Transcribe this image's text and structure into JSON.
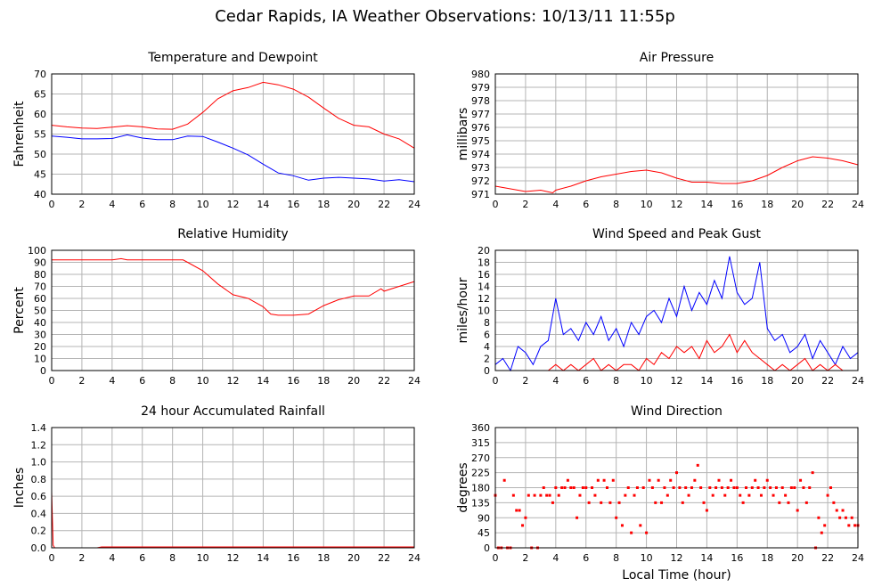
{
  "page": {
    "title": "Cedar Rapids, IA Weather Observations: 10/13/11 11:55p"
  },
  "chart_data": [
    {
      "type": "line",
      "title": "Temperature and Dewpoint",
      "xlabel": "",
      "ylabel": "Fahrenheit",
      "xlim": [
        0,
        24
      ],
      "ylim": [
        40,
        70
      ],
      "xticks": [
        "0",
        "2",
        "4",
        "6",
        "8",
        "10",
        "12",
        "14",
        "16",
        "18",
        "20",
        "22",
        "24"
      ],
      "yticks": [
        "40",
        "45",
        "50",
        "55",
        "60",
        "65",
        "70"
      ],
      "grid": true,
      "series": [
        {
          "color": "#ff0000",
          "x": [
            0,
            1,
            2,
            3,
            4,
            5,
            6,
            7,
            8,
            9,
            10,
            11,
            12,
            13,
            14,
            15,
            16,
            17,
            18,
            19,
            20,
            21,
            22,
            23,
            24
          ],
          "y": [
            57.2,
            56.8,
            56.5,
            56.4,
            56.7,
            57.1,
            56.8,
            56.3,
            56.2,
            57.5,
            60.4,
            63.8,
            65.8,
            66.6,
            67.9,
            67.3,
            66.2,
            64.2,
            61.5,
            58.9,
            57.2,
            56.8,
            55.0,
            53.8,
            51.5
          ]
        },
        {
          "color": "#0000ff",
          "x": [
            0,
            1,
            2,
            3,
            4,
            5,
            6,
            7,
            8,
            9,
            10,
            11,
            12,
            13,
            14,
            15,
            16,
            17,
            18,
            19,
            20,
            21,
            22,
            23,
            24
          ],
          "y": [
            54.5,
            54.2,
            53.8,
            53.8,
            53.9,
            54.8,
            54.0,
            53.6,
            53.6,
            54.5,
            54.4,
            53.0,
            51.5,
            49.8,
            47.5,
            45.3,
            44.6,
            43.5,
            44.0,
            44.2,
            44.0,
            43.8,
            43.3,
            43.6,
            43.1
          ]
        }
      ]
    },
    {
      "type": "line",
      "title": "Air Pressure",
      "xlabel": "",
      "ylabel": "millibars",
      "xlim": [
        0,
        24
      ],
      "ylim": [
        971,
        980
      ],
      "xticks": [
        "0",
        "2",
        "4",
        "6",
        "8",
        "10",
        "12",
        "14",
        "16",
        "18",
        "20",
        "22",
        "24"
      ],
      "yticks": [
        "971",
        "972",
        "973",
        "974",
        "975",
        "976",
        "977",
        "978",
        "979",
        "980"
      ],
      "grid": true,
      "series": [
        {
          "color": "#ff0000",
          "x": [
            0,
            1,
            2,
            3,
            3.8,
            4,
            5,
            6,
            7,
            8,
            9,
            10,
            11,
            12,
            13,
            14,
            15,
            16,
            17,
            18,
            19,
            20,
            21,
            22,
            23,
            24
          ],
          "y": [
            971.6,
            971.4,
            971.2,
            971.3,
            971.1,
            971.3,
            971.6,
            972.0,
            972.3,
            972.5,
            972.7,
            972.8,
            972.6,
            972.2,
            971.9,
            971.9,
            971.8,
            971.8,
            972.0,
            972.4,
            973.0,
            973.5,
            973.8,
            973.7,
            973.5,
            973.2
          ]
        }
      ]
    },
    {
      "type": "line",
      "title": "Relative Humidity",
      "xlabel": "",
      "ylabel": "Percent",
      "xlim": [
        0,
        24
      ],
      "ylim": [
        0,
        100
      ],
      "xticks": [
        "0",
        "2",
        "4",
        "6",
        "8",
        "10",
        "12",
        "14",
        "16",
        "18",
        "20",
        "22",
        "24"
      ],
      "yticks": [
        "0",
        "10",
        "20",
        "30",
        "40",
        "50",
        "60",
        "70",
        "80",
        "90",
        "100"
      ],
      "grid": true,
      "series": [
        {
          "color": "#ff0000",
          "x": [
            0,
            1,
            2,
            3,
            4,
            4.6,
            5,
            6,
            7,
            8,
            8.7,
            9,
            10,
            11,
            12,
            13,
            14,
            14.5,
            15,
            16,
            17,
            18,
            19,
            20,
            21,
            21.8,
            22,
            23,
            24
          ],
          "y": [
            92,
            92,
            92,
            92,
            92,
            93,
            92,
            92,
            92,
            92,
            92,
            90,
            83,
            72,
            63,
            60,
            53,
            47,
            46,
            46,
            47,
            54,
            59,
            62,
            62,
            68,
            66,
            70,
            74
          ]
        }
      ]
    },
    {
      "type": "line",
      "title": "Wind Speed and Peak Gust",
      "xlabel": "",
      "ylabel": "miles/hour",
      "xlim": [
        0,
        24
      ],
      "ylim": [
        0,
        20
      ],
      "xticks": [
        "0",
        "2",
        "4",
        "6",
        "8",
        "10",
        "12",
        "14",
        "16",
        "18",
        "20",
        "22",
        "24"
      ],
      "yticks": [
        "0",
        "2",
        "4",
        "6",
        "8",
        "10",
        "12",
        "14",
        "16",
        "18",
        "20"
      ],
      "grid": true,
      "series": [
        {
          "color": "#0000ff",
          "x": [
            0,
            0.5,
            1,
            1.5,
            2,
            2.5,
            3,
            3.5,
            4,
            4.5,
            5,
            5.5,
            6,
            6.5,
            7,
            7.5,
            8,
            8.5,
            9,
            9.5,
            10,
            10.5,
            11,
            11.5,
            12,
            12.5,
            13,
            13.5,
            14,
            14.5,
            15,
            15.5,
            16,
            16.5,
            17,
            17.5,
            18,
            18.5,
            19,
            19.5,
            20,
            20.5,
            21,
            21.5,
            22,
            22.5,
            23,
            23.5,
            24
          ],
          "y": [
            1,
            2,
            0,
            4,
            3,
            1,
            4,
            5,
            12,
            6,
            7,
            5,
            8,
            6,
            9,
            5,
            7,
            4,
            8,
            6,
            9,
            10,
            8,
            12,
            9,
            14,
            10,
            13,
            11,
            15,
            12,
            19,
            13,
            11,
            12,
            18,
            7,
            5,
            6,
            3,
            4,
            6,
            2,
            5,
            3,
            1,
            4,
            2,
            3
          ]
        },
        {
          "color": "#ff0000",
          "x": [
            0,
            0.5,
            1,
            1.5,
            2,
            2.5,
            3,
            3.5,
            4,
            4.5,
            5,
            5.5,
            6,
            6.5,
            7,
            7.5,
            8,
            8.5,
            9,
            9.5,
            10,
            10.5,
            11,
            11.5,
            12,
            12.5,
            13,
            13.5,
            14,
            14.5,
            15,
            15.5,
            16,
            16.5,
            17,
            17.5,
            18,
            18.5,
            19,
            19.5,
            20,
            20.5,
            21,
            21.5,
            22,
            22.5,
            23,
            23.5,
            24
          ],
          "y": [
            0,
            0,
            0,
            0,
            0,
            0,
            0,
            0,
            1,
            0,
            1,
            0,
            1,
            2,
            0,
            1,
            0,
            1,
            1,
            0,
            2,
            1,
            3,
            2,
            4,
            3,
            4,
            2,
            5,
            3,
            4,
            6,
            3,
            5,
            3,
            2,
            1,
            0,
            1,
            0,
            1,
            2,
            0,
            1,
            0,
            1,
            0,
            0,
            0
          ]
        }
      ]
    },
    {
      "type": "line",
      "title": "24 hour Accumulated Rainfall",
      "xlabel": "",
      "ylabel": "Inches",
      "xlim": [
        0,
        24
      ],
      "ylim": [
        0,
        1.4
      ],
      "xticks": [
        "0",
        "2",
        "4",
        "6",
        "8",
        "10",
        "12",
        "14",
        "16",
        "18",
        "20",
        "22",
        "24"
      ],
      "yticks": [
        "0.0",
        "0.2",
        "0.4",
        "0.6",
        "0.8",
        "1.0",
        "1.2",
        "1.4"
      ],
      "grid": true,
      "series": [
        {
          "color": "#ff0000",
          "x": [
            0,
            0.05,
            0.1,
            0.2,
            3,
            3.3,
            24
          ],
          "y": [
            0.65,
            0.35,
            0.03,
            0.0,
            0.0,
            0.01,
            0.01
          ]
        }
      ]
    },
    {
      "type": "scatter",
      "title": "Wind Direction",
      "xlabel": "Local Time (hour)",
      "ylabel": "degrees",
      "xlim": [
        0,
        24
      ],
      "ylim": [
        0,
        360
      ],
      "xticks": [
        "0",
        "2",
        "4",
        "6",
        "8",
        "10",
        "12",
        "14",
        "16",
        "18",
        "20",
        "22",
        "24"
      ],
      "yticks": [
        "0",
        "45",
        "90",
        "135",
        "180",
        "225",
        "270",
        "315",
        "360"
      ],
      "grid": true,
      "series": [
        {
          "color": "#ff0000",
          "x": [
            0,
            0.2,
            0.4,
            0.6,
            0.8,
            1.0,
            1.2,
            1.4,
            1.6,
            1.8,
            2.0,
            2.2,
            2.4,
            2.6,
            2.8,
            3.0,
            3.2,
            3.4,
            3.6,
            3.8,
            4.0,
            4.2,
            4.4,
            4.6,
            4.8,
            5.0,
            5.2,
            5.4,
            5.6,
            5.8,
            6.0,
            6.2,
            6.4,
            6.6,
            6.8,
            7.0,
            7.2,
            7.4,
            7.6,
            7.8,
            8.0,
            8.2,
            8.4,
            8.6,
            8.8,
            9.0,
            9.2,
            9.4,
            9.6,
            9.8,
            10.0,
            10.2,
            10.4,
            10.6,
            10.8,
            11.0,
            11.2,
            11.4,
            11.6,
            11.8,
            12.0,
            12.2,
            12.4,
            12.6,
            12.8,
            13.0,
            13.2,
            13.4,
            13.6,
            13.8,
            14.0,
            14.2,
            14.4,
            14.6,
            14.8,
            15.0,
            15.2,
            15.4,
            15.6,
            15.8,
            16.0,
            16.2,
            16.4,
            16.6,
            16.8,
            17.0,
            17.2,
            17.4,
            17.6,
            17.8,
            18.0,
            18.2,
            18.4,
            18.6,
            18.8,
            19.0,
            19.2,
            19.4,
            19.6,
            19.8,
            20.0,
            20.2,
            20.4,
            20.6,
            20.8,
            21.0,
            21.2,
            21.4,
            21.6,
            21.8,
            22.0,
            22.2,
            22.4,
            22.6,
            22.8,
            23.0,
            23.2,
            23.4,
            23.6,
            23.8,
            24.0
          ],
          "y": [
            157,
            0,
            0,
            202,
            0,
            0,
            157,
            112,
            112,
            67,
            90,
            157,
            0,
            157,
            0,
            157,
            180,
            157,
            157,
            135,
            180,
            157,
            180,
            180,
            202,
            180,
            180,
            90,
            157,
            180,
            180,
            135,
            180,
            157,
            202,
            135,
            202,
            180,
            135,
            202,
            90,
            135,
            67,
            157,
            180,
            45,
            157,
            180,
            67,
            180,
            45,
            202,
            180,
            135,
            202,
            135,
            180,
            157,
            202,
            180,
            225,
            180,
            135,
            180,
            157,
            180,
            202,
            247,
            180,
            135,
            112,
            180,
            157,
            180,
            202,
            180,
            157,
            180,
            202,
            180,
            180,
            157,
            135,
            180,
            157,
            180,
            202,
            180,
            157,
            180,
            202,
            180,
            157,
            180,
            135,
            180,
            157,
            135,
            180,
            180,
            112,
            202,
            180,
            135,
            180,
            225,
            0,
            90,
            45,
            67,
            157,
            180,
            135,
            112,
            90,
            112,
            90,
            67,
            90,
            67,
            67
          ]
        }
      ]
    }
  ]
}
